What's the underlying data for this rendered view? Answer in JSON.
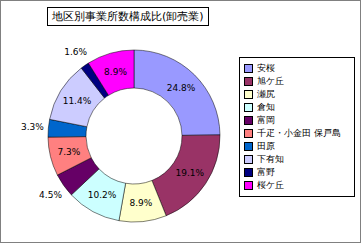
{
  "chart_data": {
    "type": "pie",
    "title": "地区別事業所数構成比(卸売業)",
    "categories": [
      "安桜",
      "旭ケ丘",
      "瀬尻",
      "倉知",
      "富岡",
      "千疋・小金田 保戸島",
      "田原",
      "下有知",
      "富野",
      "桜ケ丘"
    ],
    "values": [
      24.8,
      19.1,
      8.9,
      10.2,
      4.5,
      7.3,
      3.3,
      11.4,
      1.6,
      8.9
    ],
    "value_labels": [
      "24.8%",
      "19.1%",
      "8.9%",
      "10.2%",
      "4.5%",
      "7.3%",
      "3.3%",
      "11.4%",
      "1.6%",
      "8.9%"
    ],
    "colors": [
      "#9999ff",
      "#993366",
      "#ffffcc",
      "#ccffff",
      "#660066",
      "#ff8080",
      "#0066cc",
      "#ccccff",
      "#000080",
      "#ff00ff"
    ],
    "data_labels": true,
    "legend": "right"
  }
}
